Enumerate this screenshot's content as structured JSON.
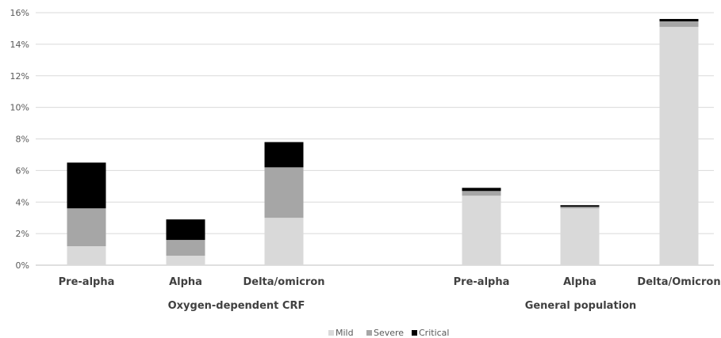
{
  "chart_data": {
    "type": "bar",
    "stacked": true,
    "y_ticks": [
      "0%",
      "2%",
      "4%",
      "6%",
      "8%",
      "10%",
      "12%",
      "14%",
      "16%"
    ],
    "ylim": [
      0,
      16
    ],
    "grid": true,
    "legend_position": "bottom",
    "groups": [
      {
        "name": "Oxygen-dependent CRF",
        "categories": [
          "Pre-alpha",
          "Alpha",
          "Delta/omicron"
        ]
      },
      {
        "name": "General population",
        "categories": [
          "Pre-alpha",
          "Alpha",
          "Delta/Omicron"
        ]
      }
    ],
    "categories": [
      "Pre-alpha",
      "Alpha",
      "Delta/omicron",
      "Pre-alpha",
      "Alpha",
      "Delta/Omicron"
    ],
    "series": [
      {
        "name": "Mild",
        "color": "#d9d9d9",
        "values": [
          1.2,
          0.6,
          3.0,
          4.4,
          3.6,
          15.1
        ]
      },
      {
        "name": "Severe",
        "color": "#a6a6a6",
        "values": [
          2.4,
          1.0,
          3.2,
          0.3,
          0.1,
          0.35
        ]
      },
      {
        "name": "Critical",
        "color": "#000000",
        "values": [
          2.9,
          1.3,
          1.6,
          0.2,
          0.1,
          0.15
        ]
      }
    ]
  }
}
